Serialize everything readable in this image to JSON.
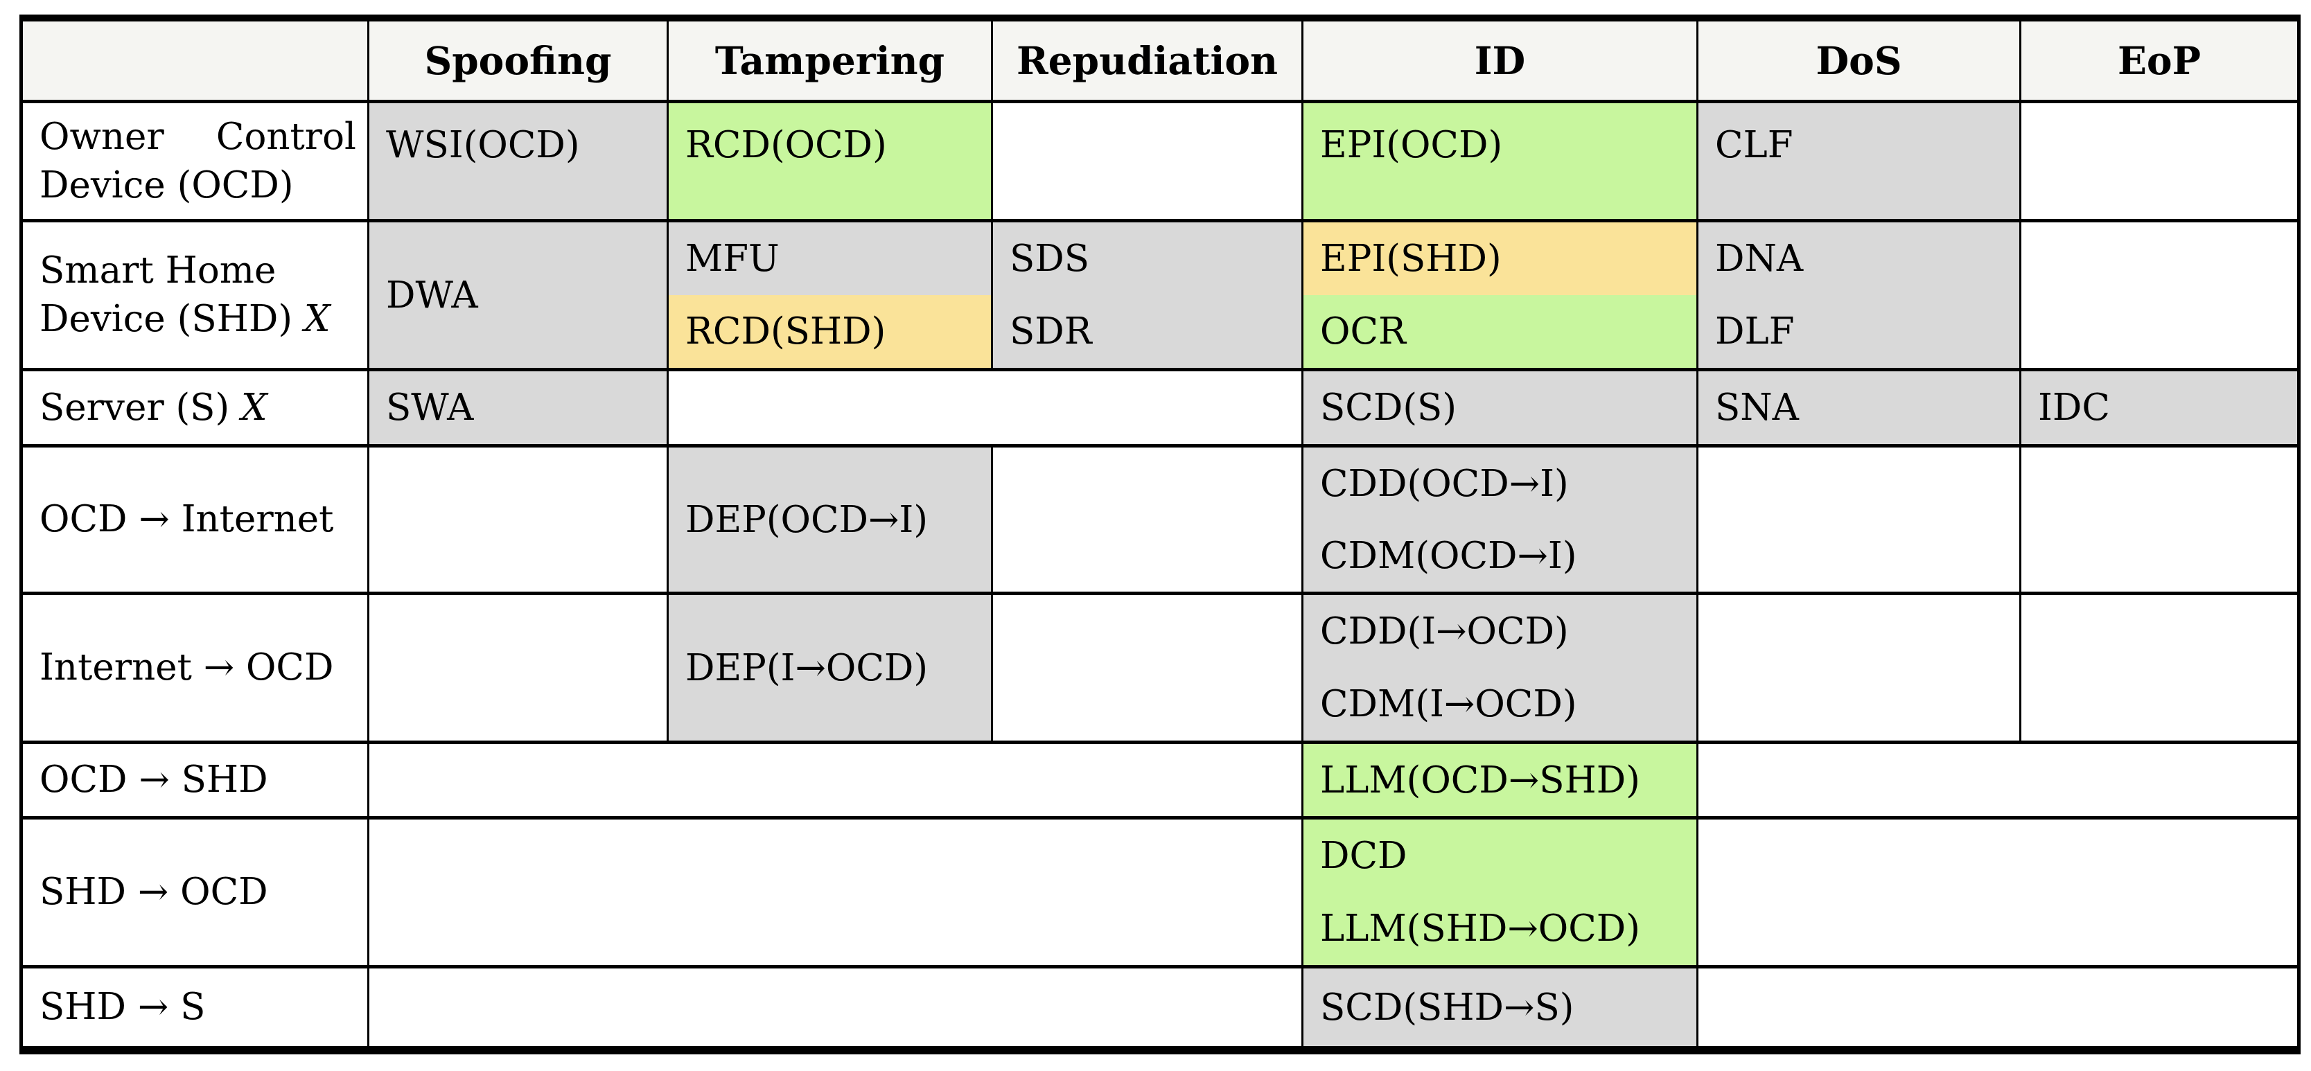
{
  "table": {
    "columns": [
      "",
      "Spoofing",
      "Tampering",
      "Repudiation",
      "ID",
      "DoS",
      "EoP"
    ],
    "colors": {
      "cell_gray": "#d9d9d9",
      "cell_green": "#c8f69e",
      "cell_yellow": "#fae399",
      "header_bg": "#f5f5f2",
      "border": "#000000"
    },
    "rows": [
      {
        "label": "Owner Control Device (OCD)",
        "spoofing": "WSI(OCD)",
        "tampering": "RCD(OCD)",
        "id": "EPI(OCD)",
        "dos": "CLF"
      },
      {
        "label_html": "Smart Home Device (SHD) <i>X</i>",
        "spoofing": "DWA",
        "tampering_top": "MFU",
        "tampering_bottom": "RCD(SHD)",
        "repudiation_top": "SDS",
        "repudiation_bottom": "SDR",
        "id_top": "EPI(SHD)",
        "id_bottom": "OCR",
        "dos_top": "DNA",
        "dos_bottom": "DLF"
      },
      {
        "label_html": "Server (S) <i>X</i>",
        "spoofing": "SWA",
        "id": "SCD(S)",
        "dos": "SNA",
        "eop": "IDC"
      },
      {
        "label": "OCD → Internet",
        "tampering": "DEP(OCD→I)",
        "id_top": "CDD(OCD→I)",
        "id_bottom": "CDM(OCD→I)"
      },
      {
        "label": "Internet → OCD",
        "tampering": "DEP(I→OCD)",
        "id_top": "CDD(I→OCD)",
        "id_bottom": "CDM(I→OCD)"
      },
      {
        "label": "OCD → SHD",
        "id": "LLM(OCD→SHD)"
      },
      {
        "label": "SHD → OCD",
        "id_top": "DCD",
        "id_bottom": "LLM(SHD→OCD)"
      },
      {
        "label": "SHD → S",
        "id": "SCD(SHD→S)"
      }
    ]
  }
}
